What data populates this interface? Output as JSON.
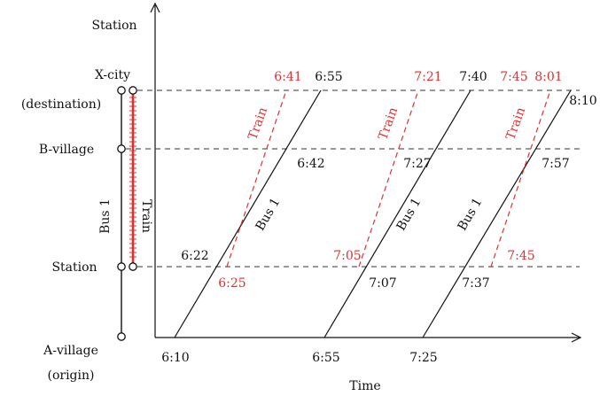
{
  "axes": {
    "x_label": "Time",
    "y_label": "Station"
  },
  "stops": {
    "x_city_name": "X-city",
    "x_city_note": "(destination)",
    "b_village": "B-village",
    "station": "Station",
    "a_village_name": "A-village",
    "a_village_note": "(origin)"
  },
  "routes": {
    "bus": "Bus 1",
    "train": "Train"
  },
  "bus_trips": [
    {
      "label": "Bus 1",
      "depart_a_village": "6:10",
      "at_station": "6:22",
      "at_b_village": "6:42",
      "arrive_x_city": "6:55"
    },
    {
      "label": "Bus 1",
      "depart_a_village": "6:55",
      "at_station": "7:07",
      "at_b_village": "7:27",
      "arrive_x_city": "7:40"
    },
    {
      "label": "Bus 1",
      "depart_a_village": "7:25",
      "at_station": "7:37",
      "at_b_village": "7:57",
      "arrive_x_city": "8:10"
    }
  ],
  "train_trips": [
    {
      "label": "Train",
      "depart_station": "6:25",
      "arrive_x_city": "6:41"
    },
    {
      "label": "Train",
      "depart_station": "7:05",
      "arrive_x_city": "7:21"
    },
    {
      "label": "Train",
      "depart_station": "7:45",
      "arrive_x_city": "8:01"
    }
  ],
  "extra_time_label": "7:45",
  "colors": {
    "bus_line": "#111111",
    "train_line": "#e03030",
    "dashed_level": "#333333",
    "axis": "#111111"
  }
}
